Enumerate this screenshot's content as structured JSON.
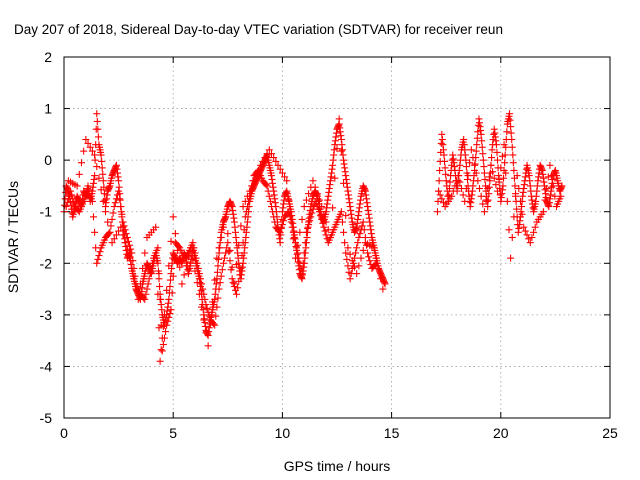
{
  "chart_data": {
    "type": "scatter",
    "title": "Day 207 of 2018, Sidereal Day-to-day VTEC variation (SDTVAR) for receiver reun",
    "xlabel": "GPS time / hours",
    "ylabel": "SDTVAR / TECUs",
    "xlim": [
      0,
      25
    ],
    "ylim": [
      -5,
      2
    ],
    "xticks": [
      "0",
      "5",
      "10",
      "15",
      "20",
      "25"
    ],
    "yticks": [
      "-5",
      "-4",
      "-3",
      "-2",
      "-1",
      "0",
      "1",
      "2"
    ],
    "grid": true,
    "series": [
      {
        "name": "SDTVAR",
        "marker": "+",
        "color": "#ff0000",
        "segments": [
          {
            "x": [
              0.0,
              0.1,
              0.2,
              0.3,
              0.4,
              0.5,
              0.6,
              0.7,
              0.8,
              0.9,
              1.0,
              1.1,
              1.2,
              1.3,
              1.4,
              1.5,
              1.6,
              1.7,
              1.8,
              1.9,
              2.0,
              2.1,
              2.2,
              2.3,
              2.4,
              2.5,
              2.6,
              2.7,
              2.8,
              2.9,
              3.0,
              3.1,
              3.2,
              3.3,
              3.4,
              3.5,
              3.6,
              3.7,
              3.8,
              3.9,
              4.0,
              4.1,
              4.2,
              4.3,
              4.4,
              4.5,
              4.6,
              4.7,
              4.8,
              4.9,
              5.0,
              5.1,
              5.2,
              5.3,
              5.4,
              5.5,
              5.6,
              5.7,
              5.8,
              5.9,
              6.0,
              6.1,
              6.2,
              6.3,
              6.4,
              6.5,
              6.6,
              6.7,
              6.8,
              6.9,
              7.0,
              7.1,
              7.2,
              7.3,
              7.4,
              7.5,
              7.6,
              7.7,
              7.8,
              7.9,
              8.0,
              8.1,
              8.2,
              8.3,
              8.4,
              8.5,
              8.6,
              8.7,
              8.8,
              8.9,
              9.0,
              9.1,
              9.2,
              9.3,
              9.4,
              9.5,
              9.6,
              9.7,
              9.8,
              9.9,
              10.0,
              10.1,
              10.2,
              10.3,
              10.4,
              10.5,
              10.6,
              10.7,
              10.8,
              10.9,
              11.0,
              11.1,
              11.2,
              11.3,
              11.4,
              11.5,
              11.6,
              11.7,
              11.8,
              11.9,
              12.0,
              12.1,
              12.2,
              12.3,
              12.4,
              12.5,
              12.6,
              12.7,
              12.8,
              12.9,
              13.0,
              13.1,
              13.2,
              13.3,
              13.4,
              13.5,
              13.6,
              13.7,
              13.8,
              13.9,
              14.0,
              14.1,
              14.2,
              14.3,
              14.4,
              14.5,
              14.6,
              14.7
            ],
            "y": [
              -1.0,
              -0.5,
              -0.6,
              -0.8,
              -1.1,
              -0.9,
              -0.7,
              -0.8,
              -0.9,
              -0.6,
              -0.7,
              -0.5,
              -0.8,
              -0.6,
              -0.3,
              0.9,
              0.3,
              0.1,
              -0.4,
              -0.9,
              -0.6,
              -0.5,
              -0.3,
              -0.2,
              -0.1,
              -0.4,
              -0.9,
              -1.3,
              -1.6,
              -1.9,
              -1.8,
              -2.1,
              -2.3,
              -2.5,
              -2.6,
              -2.7,
              -2.4,
              -2.2,
              -2.0,
              -2.1,
              -2.2,
              -2.0,
              -1.8,
              -2.0,
              -2.6,
              -3.0,
              -3.2,
              -3.0,
              -2.7,
              -2.2,
              -1.8,
              -1.9,
              -2.0,
              -1.9,
              -2.0,
              -1.8,
              -1.9,
              -2.2,
              -2.0,
              -1.7,
              -1.9,
              -2.1,
              -2.3,
              -2.6,
              -3.0,
              -3.3,
              -3.4,
              -3.1,
              -2.9,
              -2.7,
              -2.3,
              -1.8,
              -1.4,
              -1.2,
              -1.1,
              -0.9,
              -0.8,
              -0.9,
              -1.2,
              -1.6,
              -2.0,
              -2.3,
              -2.0,
              -1.6,
              -1.2,
              -0.8,
              -0.6,
              -0.5,
              -0.4,
              -0.3,
              -0.2,
              -0.1,
              0.0,
              0.1,
              -0.1,
              -0.3,
              -0.6,
              -0.9,
              -1.3,
              -1.6,
              -1.0,
              -0.7,
              -0.6,
              -0.8,
              -1.0,
              -1.3,
              -1.6,
              -1.9,
              -2.2,
              -2.3,
              -2.0,
              -1.6,
              -1.2,
              -0.9,
              -0.7,
              -0.6,
              -0.7,
              -0.9,
              -1.1,
              -1.2,
              -1.0,
              -0.7,
              -0.4,
              -0.1,
              0.3,
              0.6,
              0.7,
              0.4,
              0.0,
              -0.3,
              -0.6,
              -0.9,
              -1.2,
              -1.4,
              -1.3,
              -1.0,
              -0.7,
              -0.5,
              -0.6,
              -0.9,
              -1.2,
              -1.5,
              -1.7,
              -1.9,
              -2.1,
              -2.2,
              -2.3,
              -2.4
            ]
          },
          {
            "x": [
              0.1,
              0.3,
              0.5,
              0.7,
              0.9,
              1.1,
              1.3,
              1.5,
              1.7,
              1.9,
              2.1,
              2.3,
              2.5,
              2.7,
              2.9,
              3.1,
              3.3,
              3.5,
              3.7,
              3.9,
              4.1,
              4.3,
              4.5,
              4.7,
              4.9,
              5.1,
              5.3,
              5.5,
              5.7,
              5.9,
              6.1,
              6.3,
              6.5,
              6.7,
              6.9,
              7.1,
              7.3,
              7.5,
              7.7,
              7.9,
              8.1,
              8.3,
              8.5,
              8.7,
              8.9,
              9.1,
              9.3,
              9.5,
              9.7,
              9.9,
              10.1,
              10.3,
              10.5,
              10.7,
              10.9,
              11.1,
              11.3,
              11.5,
              11.7,
              11.9,
              12.1,
              12.3,
              12.5,
              12.7,
              12.9,
              13.1,
              13.3,
              13.5,
              13.7,
              13.9,
              14.1,
              14.3
            ],
            "y": [
              -0.9,
              -0.6,
              -0.9,
              -1.0,
              -0.8,
              -0.6,
              -0.8,
              -2.0,
              -1.7,
              -1.5,
              -1.4,
              -0.9,
              -0.6,
              -1.2,
              -1.5,
              -1.8,
              -2.4,
              -2.6,
              -2.7,
              -2.3,
              -1.9,
              -1.7,
              -3.7,
              -3.2,
              -2.9,
              -1.6,
              -1.7,
              -1.9,
              -1.8,
              -1.6,
              -2.0,
              -2.4,
              -2.8,
              -3.1,
              -3.2,
              -2.5,
              -2.0,
              -1.6,
              -2.3,
              -2.6,
              -2.1,
              -1.1,
              -0.7,
              -0.3,
              -0.2,
              -0.4,
              -0.5,
              -0.9,
              -1.3,
              -1.4,
              -1.1,
              -1.0,
              -1.4,
              -1.8,
              -2.2,
              -1.4,
              -1.1,
              -0.8,
              -1.0,
              -1.3,
              -1.6,
              -1.4,
              -1.2,
              -1.0,
              -1.8,
              -2.3,
              -1.9,
              -1.5,
              -1.2,
              -1.8,
              -2.1,
              -2.0
            ]
          },
          {
            "x": [
              0.2,
              0.6,
              1.0,
              1.4,
              1.8,
              2.2,
              2.6,
              3.0,
              3.4,
              3.8,
              4.2,
              4.4,
              4.6,
              5.0,
              5.4,
              5.8,
              6.2,
              6.6,
              7.0,
              7.4,
              7.8,
              8.2,
              8.6,
              9.0,
              9.4,
              9.8,
              10.2,
              10.6,
              11.0,
              11.4,
              11.8,
              12.2,
              12.6,
              13.0,
              13.4,
              13.8,
              14.2,
              14.6
            ],
            "y": [
              -0.4,
              -0.5,
              0.4,
              0.1,
              -0.8,
              -1.6,
              -1.3,
              -1.9,
              -2.7,
              -1.5,
              -1.3,
              -3.9,
              -3.0,
              -1.1,
              -2.4,
              -1.7,
              -2.6,
              -3.6,
              -1.9,
              -1.1,
              -2.4,
              -0.9,
              -0.5,
              -0.1,
              0.2,
              -0.1,
              -0.4,
              -1.9,
              -0.9,
              -0.4,
              -0.9,
              -1.5,
              0.8,
              -1.7,
              -2.2,
              -1.6,
              -1.7,
              -2.5
            ]
          },
          {
            "x": [
              17.1,
              17.2,
              17.3,
              17.4,
              17.5,
              17.6,
              17.7,
              17.8,
              17.9,
              18.0,
              18.1,
              18.2,
              18.3,
              18.4,
              18.5,
              18.6,
              18.7,
              18.8,
              18.9,
              19.0,
              19.1,
              19.2,
              19.3,
              19.4,
              19.5,
              19.6,
              19.7,
              19.8,
              19.9,
              20.0,
              20.1,
              20.2,
              20.3,
              20.4,
              20.5,
              20.6,
              20.7,
              20.8,
              20.9,
              21.0,
              21.1,
              21.2,
              21.3,
              21.4,
              21.5,
              21.6,
              21.7,
              21.8,
              21.9,
              22.0,
              22.1,
              22.2,
              22.3,
              22.4,
              22.5,
              22.6,
              22.7,
              22.8
            ],
            "y": [
              -1.0,
              -0.2,
              0.5,
              0.1,
              -0.4,
              -0.8,
              -0.3,
              0.1,
              -0.2,
              -0.6,
              -0.2,
              0.2,
              0.4,
              0.0,
              -0.5,
              -0.9,
              -0.6,
              -0.2,
              0.3,
              0.8,
              0.5,
              0.0,
              -0.5,
              -0.9,
              -0.4,
              0.2,
              0.6,
              0.3,
              -0.3,
              -0.8,
              -0.5,
              0.1,
              0.7,
              0.9,
              0.4,
              -0.2,
              -0.8,
              -1.4,
              -1.1,
              -0.7,
              -0.4,
              -0.1,
              -0.3,
              -0.7,
              -1.0,
              -0.8,
              -0.4,
              -0.1,
              -0.2,
              -0.5,
              -0.8,
              -0.9,
              -0.6,
              -0.3,
              -0.2,
              -0.4,
              -0.6,
              -0.5
            ]
          },
          {
            "x": [
              17.15,
              17.45,
              17.75,
              18.05,
              18.35,
              18.65,
              18.95,
              19.25,
              19.55,
              19.85,
              20.15,
              20.45,
              20.75,
              21.05,
              21.35,
              21.65,
              21.95,
              22.25,
              22.55,
              22.75
            ],
            "y": [
              -0.6,
              -0.9,
              -0.7,
              -0.3,
              -0.8,
              0.2,
              -0.4,
              -1.0,
              -0.1,
              -0.6,
              0.3,
              -1.9,
              -0.3,
              -1.3,
              -1.6,
              -1.2,
              -1.0,
              -0.1,
              -0.9,
              -0.7
            ]
          }
        ]
      }
    ]
  }
}
